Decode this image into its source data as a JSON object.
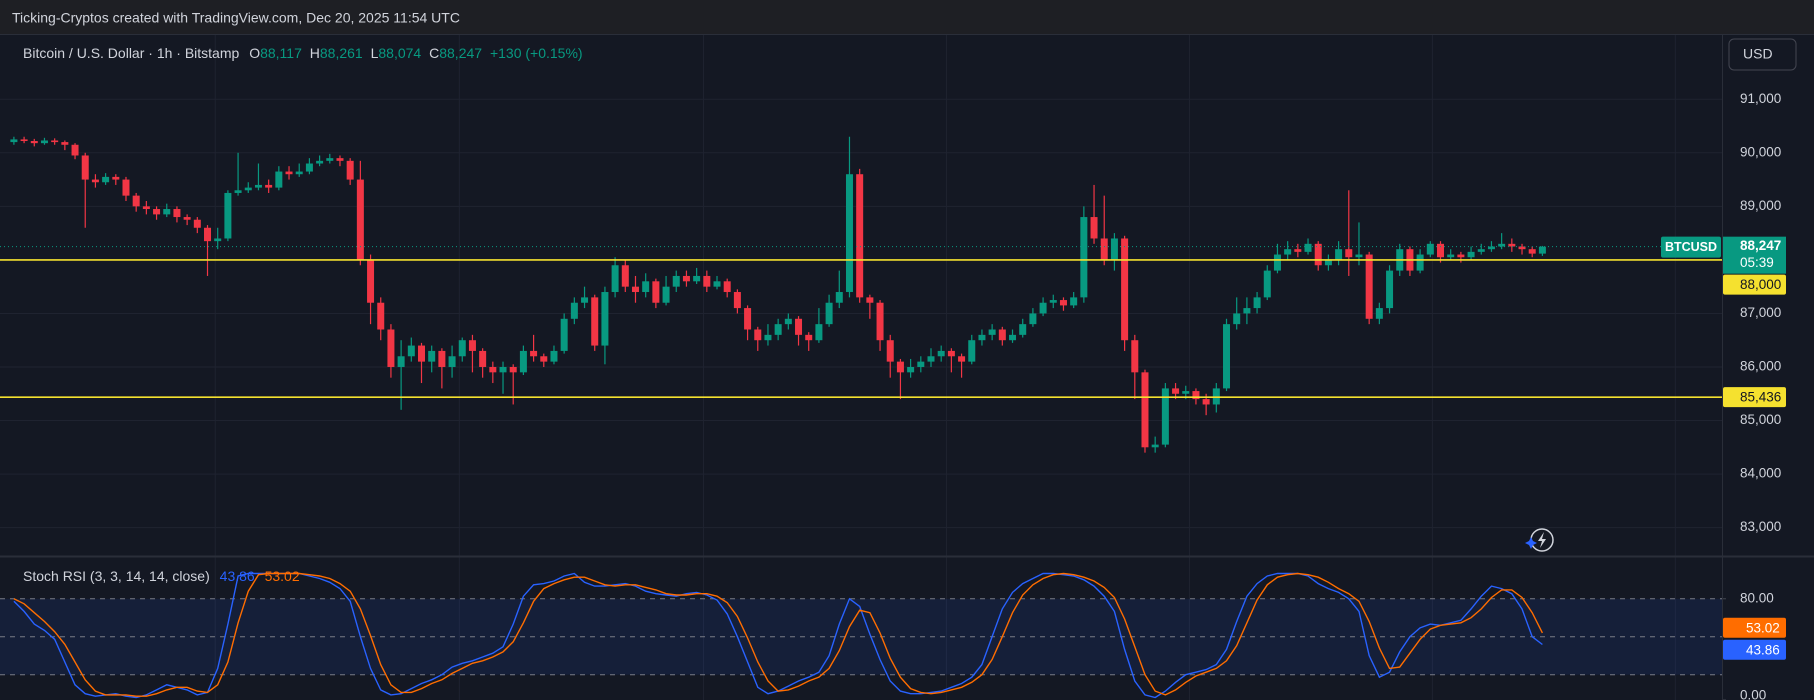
{
  "header": {
    "text": "Ticking-Cryptos created with TradingView.com, Dec 20, 2025 11:54 UTC"
  },
  "currency_button": "USD",
  "chart_data": [
    {
      "type": "candlestick",
      "title": "Bitcoin / U.S. Dollar · 1h · Bitstamp",
      "legend": [
        {
          "key": "O",
          "value": "88,117"
        },
        {
          "key": "H",
          "value": "88,261"
        },
        {
          "key": "L",
          "value": "88,074"
        },
        {
          "key": "C",
          "value": "88,247"
        }
      ],
      "change": "+130 (+0.15%)",
      "up_color": "#089981",
      "down_color": "#f23645",
      "open": [
        90200,
        90250,
        90220,
        90180,
        90230,
        90200,
        90150,
        89950,
        89500,
        89450,
        89550,
        89500,
        89200,
        89000,
        88950,
        88850,
        88950,
        88800,
        88750,
        88600,
        88350,
        88400,
        89250,
        89300,
        89350,
        89400,
        89350,
        89650,
        89600,
        89650,
        89800,
        89850,
        89900,
        89850,
        89500,
        88000,
        87200,
        86700,
        86000,
        86200,
        86400,
        86100,
        86300,
        86000,
        86200,
        86500,
        86300,
        86000,
        85900,
        86000,
        85900,
        86300,
        86200,
        86100,
        86300,
        86900,
        87200,
        87300,
        86400,
        87400,
        87900,
        87500,
        87400,
        87600,
        87200,
        87500,
        87700,
        87600,
        87700,
        87500,
        87600,
        87400,
        87100,
        86700,
        86500,
        86600,
        86800,
        86900,
        86600,
        86500,
        86800,
        87200,
        87400,
        89600,
        87300,
        87200,
        86500,
        86100,
        85900,
        86000,
        86100,
        86200,
        86300,
        86200,
        86100,
        86500,
        86600,
        86700,
        86500,
        86600,
        86800,
        87000,
        87200,
        87250,
        87150,
        87300,
        88800,
        88400,
        88000,
        88400,
        86500,
        85900,
        84500,
        84550,
        85600,
        85500,
        85550,
        85400,
        85300,
        85600,
        86800,
        87000,
        87100,
        87300,
        87800,
        88100,
        88200,
        88150,
        88300,
        87900,
        88000,
        88200,
        88050,
        88100,
        86900,
        87100,
        87800,
        88200,
        87800,
        88100,
        88300,
        88050,
        88100,
        88050,
        88150,
        88200,
        88250,
        88300,
        88250,
        88200,
        88117
      ],
      "high": [
        90300,
        90300,
        90260,
        90280,
        90270,
        90230,
        90180,
        90000,
        89600,
        89620,
        89600,
        89550,
        89250,
        89100,
        89000,
        89050,
        89000,
        88850,
        88800,
        88650,
        88600,
        89300,
        90000,
        89450,
        89800,
        89500,
        89750,
        89750,
        89800,
        89900,
        89950,
        89980,
        89950,
        89900,
        89850,
        88100,
        87300,
        86800,
        86500,
        86550,
        86450,
        86400,
        86350,
        86400,
        86550,
        86600,
        86350,
        86100,
        86100,
        86050,
        86400,
        86600,
        86250,
        86400,
        87000,
        87300,
        87500,
        87350,
        87500,
        88050,
        88000,
        87700,
        87750,
        87650,
        87700,
        87800,
        87800,
        87850,
        87800,
        87700,
        87650,
        87450,
        87150,
        86750,
        86800,
        86900,
        87000,
        86950,
        86650,
        87100,
        87350,
        87800,
        90300,
        89700,
        87350,
        87250,
        86600,
        86150,
        86150,
        86200,
        86350,
        86400,
        86350,
        86250,
        86600,
        86700,
        86800,
        86750,
        86700,
        86900,
        87100,
        87300,
        87350,
        87300,
        87400,
        89000,
        89400,
        89200,
        88500,
        88450,
        86600,
        85950,
        84700,
        85700,
        85700,
        85650,
        85600,
        85500,
        85700,
        86900,
        87300,
        87300,
        87400,
        87900,
        88300,
        88350,
        88300,
        88400,
        88350,
        88100,
        88350,
        89300,
        88700,
        88150,
        87200,
        87900,
        88300,
        88250,
        88200,
        88350,
        88350,
        88200,
        88150,
        88250,
        88300,
        88350,
        88500,
        88400,
        88300,
        88250,
        88261
      ],
      "low": [
        90150,
        90180,
        90120,
        90150,
        90150,
        90050,
        89880,
        88600,
        89350,
        89400,
        89400,
        89100,
        88900,
        88850,
        88750,
        88800,
        88700,
        88650,
        88500,
        87700,
        88200,
        88350,
        89200,
        89250,
        89300,
        89250,
        89300,
        89500,
        89550,
        89600,
        89750,
        89800,
        89750,
        89400,
        87900,
        86800,
        86500,
        85800,
        85200,
        86100,
        85700,
        85900,
        85600,
        85800,
        86100,
        85900,
        85800,
        85700,
        85500,
        85300,
        85850,
        86100,
        86000,
        86050,
        86250,
        86800,
        87100,
        86300,
        86050,
        87300,
        87400,
        87200,
        87300,
        87100,
        87150,
        87400,
        87500,
        87550,
        87400,
        87450,
        87300,
        87000,
        86500,
        86300,
        86400,
        86500,
        86700,
        86400,
        86300,
        86450,
        86750,
        87100,
        87300,
        87200,
        86900,
        86300,
        85800,
        85400,
        85800,
        85900,
        86000,
        86100,
        85900,
        85800,
        86050,
        86400,
        86500,
        86400,
        86450,
        86550,
        86750,
        86950,
        87100,
        87050,
        87100,
        87200,
        88300,
        87900,
        87800,
        86300,
        85400,
        84400,
        84400,
        84500,
        85400,
        85400,
        85300,
        85100,
        85150,
        85550,
        86700,
        86800,
        87000,
        87250,
        87750,
        88000,
        88050,
        88100,
        87800,
        87800,
        87900,
        87700,
        87900,
        86800,
        86800,
        87000,
        87700,
        87700,
        87750,
        88050,
        87950,
        88000,
        87950,
        88000,
        88100,
        88150,
        88200,
        88150,
        88100,
        88050,
        88074
      ],
      "close": [
        90250,
        90220,
        90180,
        90230,
        90200,
        90150,
        89950,
        89500,
        89450,
        89550,
        89500,
        89200,
        89000,
        88950,
        88850,
        88950,
        88800,
        88750,
        88600,
        88350,
        88400,
        89250,
        89300,
        89350,
        89400,
        89350,
        89650,
        89600,
        89650,
        89800,
        89850,
        89900,
        89850,
        89500,
        88000,
        87200,
        86700,
        86000,
        86200,
        86400,
        86100,
        86300,
        86000,
        86200,
        86500,
        86300,
        86000,
        85900,
        86000,
        85900,
        86300,
        86200,
        86100,
        86300,
        86900,
        87200,
        87300,
        86400,
        87400,
        87900,
        87500,
        87400,
        87600,
        87200,
        87500,
        87700,
        87600,
        87700,
        87500,
        87600,
        87400,
        87100,
        86700,
        86500,
        86600,
        86800,
        86900,
        86600,
        86500,
        86800,
        87200,
        87400,
        89600,
        87300,
        87200,
        86500,
        86100,
        85900,
        86000,
        86100,
        86200,
        86300,
        86200,
        86100,
        86500,
        86600,
        86700,
        86500,
        86600,
        86800,
        87000,
        87200,
        87250,
        87150,
        87300,
        88800,
        88400,
        88000,
        88400,
        86500,
        85900,
        84500,
        84550,
        85600,
        85500,
        85550,
        85400,
        85300,
        85600,
        86800,
        87000,
        87100,
        87300,
        87800,
        88100,
        88200,
        88150,
        88300,
        87900,
        88000,
        88200,
        88050,
        88100,
        86900,
        87100,
        87800,
        88200,
        87800,
        88100,
        88300,
        88050,
        88100,
        88050,
        88150,
        88200,
        88250,
        88300,
        88250,
        88200,
        88117,
        88247
      ],
      "ylim": [
        82470,
        92200
      ],
      "yticks": [
        {
          "value": 83000,
          "label": "83,000"
        },
        {
          "value": 84000,
          "label": "84,000"
        },
        {
          "value": 85000,
          "label": "85,000"
        },
        {
          "value": 86000,
          "label": "86,000"
        },
        {
          "value": 87000,
          "label": "87,000"
        },
        {
          "value": 88000,
          "label": "88,000"
        },
        {
          "value": 89000,
          "label": "89,000"
        },
        {
          "value": 90000,
          "label": "90,000"
        },
        {
          "value": 91000,
          "label": "91,000"
        }
      ],
      "grid": true,
      "hlines": [
        {
          "value": 88000,
          "label": "88,000",
          "color": "#f5e12f"
        },
        {
          "value": 85436,
          "label": "85,436",
          "color": "#f5e12f"
        }
      ],
      "last_price": {
        "value": 88247,
        "label": "88,247",
        "countdown": "05:39",
        "symbol": "BTCUSD",
        "color": "#089981"
      }
    },
    {
      "type": "line",
      "title": "Stoch RSI (3, 3, 14, 14, close)",
      "series": [
        {
          "color": "#2962ff",
          "values": [
            78,
            70,
            60,
            55,
            48,
            30,
            12,
            5,
            3,
            4,
            5,
            3,
            2,
            4,
            8,
            12,
            10,
            8,
            4,
            6,
            25,
            60,
            98,
            100,
            100,
            100,
            100,
            100,
            100,
            98,
            96,
            93,
            88,
            78,
            50,
            25,
            8,
            4,
            5,
            9,
            13,
            16,
            20,
            26,
            29,
            31,
            34,
            37,
            42,
            60,
            82,
            91,
            92,
            94,
            98,
            100,
            93,
            90,
            90,
            91,
            92,
            90,
            86,
            84,
            83,
            82,
            84,
            85,
            83,
            79,
            68,
            50,
            30,
            10,
            5,
            7,
            11,
            15,
            18,
            22,
            35,
            60,
            80,
            74,
            52,
            32,
            15,
            7,
            5,
            5,
            6,
            7,
            10,
            13,
            18,
            28,
            50,
            72,
            85,
            92,
            96,
            100,
            100,
            99,
            98,
            95,
            90,
            82,
            70,
            40,
            15,
            4,
            2,
            7,
            14,
            20,
            22,
            24,
            28,
            40,
            62,
            82,
            92,
            98,
            100,
            100,
            100,
            98,
            92,
            88,
            85,
            80,
            70,
            35,
            18,
            22,
            38,
            50,
            57,
            60,
            59,
            61,
            63,
            72,
            82,
            90,
            88,
            84,
            72,
            50,
            43.86
          ]
        },
        {
          "color": "#ff6d00",
          "values": [
            80,
            76,
            69,
            62,
            54,
            44,
            30,
            16,
            7,
            4,
            4,
            4,
            3,
            3,
            5,
            8,
            10,
            10,
            7,
            6,
            12,
            30,
            61,
            86,
            99,
            100,
            100,
            100,
            100,
            99,
            98,
            96,
            92,
            86,
            72,
            51,
            28,
            12,
            6,
            6,
            9,
            13,
            16,
            21,
            25,
            29,
            31,
            34,
            38,
            46,
            61,
            78,
            88,
            92,
            95,
            97,
            97,
            94,
            91,
            90,
            91,
            91,
            89,
            87,
            84,
            83,
            83,
            84,
            84,
            82,
            77,
            66,
            49,
            30,
            15,
            7,
            8,
            11,
            15,
            18,
            25,
            39,
            58,
            71,
            69,
            53,
            33,
            18,
            9,
            6,
            5,
            6,
            8,
            10,
            14,
            20,
            32,
            50,
            69,
            83,
            91,
            96,
            99,
            100,
            99,
            97,
            94,
            89,
            81,
            64,
            42,
            20,
            7,
            4,
            8,
            14,
            19,
            22,
            25,
            31,
            43,
            61,
            79,
            91,
            97,
            99,
            100,
            99,
            97,
            93,
            88,
            84,
            78,
            62,
            41,
            25,
            26,
            37,
            48,
            56,
            59,
            60,
            61,
            65,
            72,
            81,
            87,
            87,
            81,
            69,
            53.02
          ]
        }
      ],
      "ylim": [
        0,
        113
      ],
      "yticks": [
        {
          "value": 0,
          "label": "0.00"
        },
        {
          "value": 80,
          "label": "80.00"
        }
      ],
      "levels": [
        80,
        50,
        20
      ],
      "band": [
        20,
        80
      ],
      "band_color": "#2962ff"
    }
  ]
}
